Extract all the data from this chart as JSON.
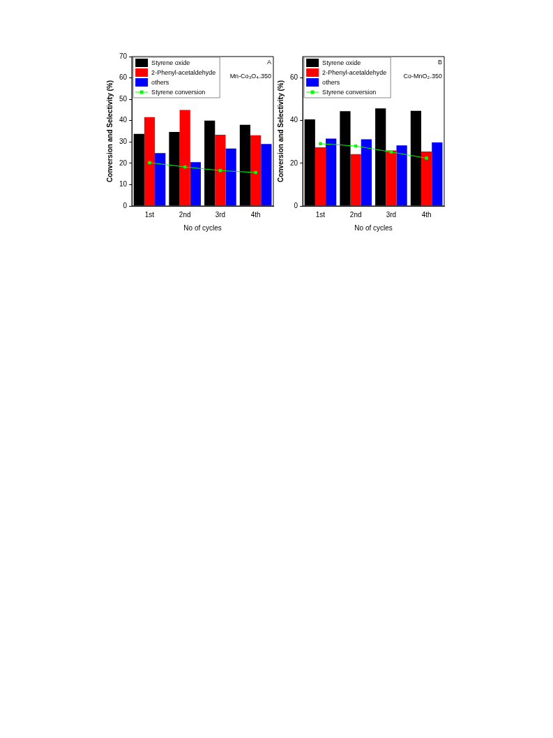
{
  "chart_data": [
    {
      "type": "bar",
      "categories": [
        "1st",
        "2nd",
        "3rd",
        "4th"
      ],
      "xlabel": "No of cycles",
      "ylabel": "Conversion and Selectivity (%)",
      "ylim": [
        0,
        70
      ],
      "yticks": [
        0,
        10,
        20,
        30,
        40,
        50,
        60,
        70
      ],
      "legend": "top left",
      "grid": false,
      "annotations": [
        "A",
        "Mn-Co₃O₄₋350"
      ],
      "series": [
        {
          "name": "Styrene oxide",
          "color": "#000000",
          "values": [
            33.8,
            34.7,
            40.0,
            38.0
          ]
        },
        {
          "name": "2-Phenyl-acetaldehyde",
          "color": "#ff0000",
          "values": [
            41.6,
            45.0,
            33.4,
            33.1
          ]
        },
        {
          "name": "others",
          "color": "#0000ff",
          "values": [
            24.8,
            20.5,
            26.9,
            29.0
          ]
        },
        {
          "name": "Styrene conversion",
          "type": "line",
          "color": "#00ff00",
          "marker": "square",
          "line_style": "solid",
          "values": [
            20.3,
            18.3,
            16.6,
            15.7
          ]
        }
      ]
    },
    {
      "type": "bar",
      "categories": [
        "1st",
        "2nd",
        "3rd",
        "4th"
      ],
      "xlabel": "No of cycles",
      "ylabel": "Conversion and Selectivity (%)",
      "ylim": [
        0,
        70
      ],
      "yticks": [
        0,
        20,
        40,
        60
      ],
      "legend": "top left",
      "grid": false,
      "annotations": [
        "B",
        "Co-MnO₂₋350"
      ],
      "series": [
        {
          "name": "Styrene oxide",
          "color": "#000000",
          "values": [
            40.6,
            44.4,
            45.7,
            44.6
          ]
        },
        {
          "name": "2-Phenyl-acetaldehyde",
          "color": "#ff0000",
          "values": [
            27.5,
            24.3,
            26.0,
            25.5
          ]
        },
        {
          "name": "others",
          "color": "#0000ff",
          "values": [
            31.6,
            31.2,
            28.4,
            29.8
          ]
        },
        {
          "name": "Styrene conversion",
          "type": "line",
          "color": "#00ff00",
          "marker": "square",
          "line_style": "solid",
          "values": [
            29.2,
            28.1,
            25.3,
            22.4
          ]
        }
      ]
    }
  ]
}
